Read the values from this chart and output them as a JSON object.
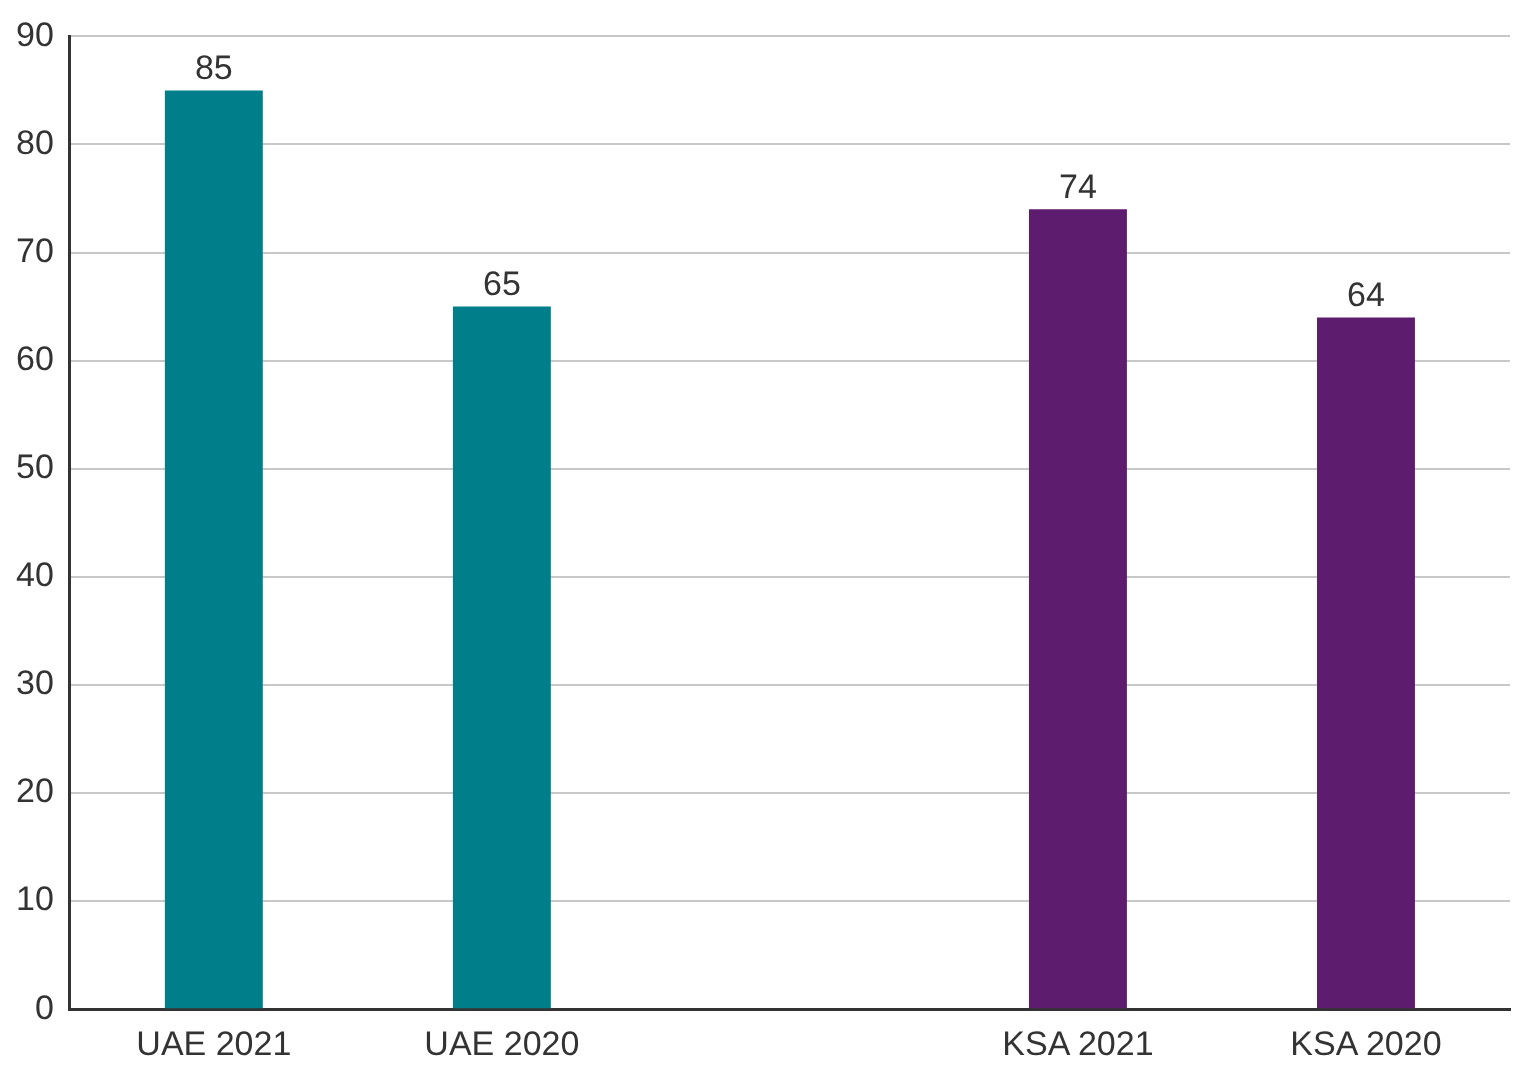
{
  "chart_data": {
    "type": "bar",
    "categories": [
      "UAE 2021",
      "UAE 2020",
      null,
      "KSA 2021",
      "KSA 2020"
    ],
    "values": [
      85,
      65,
      null,
      74,
      64
    ],
    "colors": [
      "#007f8a",
      "#007f8a",
      "#ffffff",
      "#5e1c6e",
      "#5e1c6e"
    ],
    "ylim": [
      0,
      90
    ],
    "yticks": [
      0,
      10,
      20,
      30,
      40,
      50,
      60,
      70,
      80,
      90
    ],
    "grid": "y",
    "legend": false,
    "data_labels": true
  }
}
